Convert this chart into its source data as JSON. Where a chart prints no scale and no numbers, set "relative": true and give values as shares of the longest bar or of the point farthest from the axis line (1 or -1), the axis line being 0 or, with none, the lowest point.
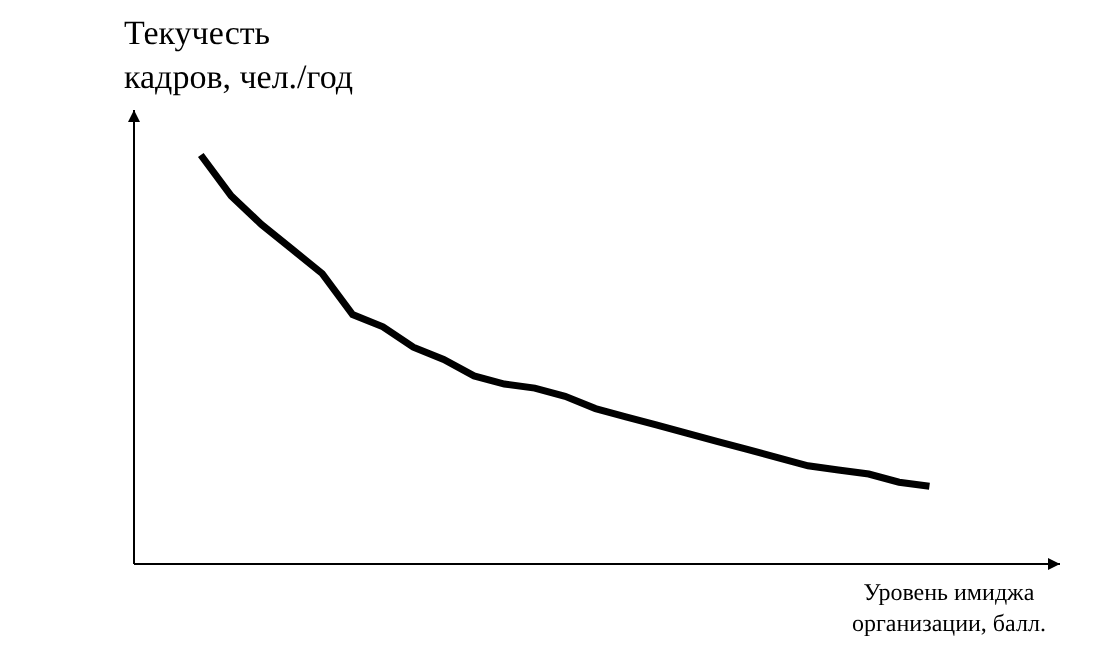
{
  "chart_data": {
    "type": "line",
    "relative": true,
    "ylabel": "Текучесть кадров, чел./год",
    "xlabel": "Уровень имиджа организации, балл.",
    "categories": [
      null,
      null,
      null,
      null,
      null,
      null,
      null,
      null,
      null,
      null,
      null,
      null,
      null,
      null,
      null,
      null,
      null,
      null,
      null,
      null,
      null,
      null,
      null,
      null,
      null
    ],
    "series": [
      {
        "color": "#000000",
        "values": [
          1.0,
          0.9,
          0.83,
          0.77,
          0.71,
          0.61,
          0.58,
          0.53,
          0.5,
          0.46,
          0.44,
          0.43,
          0.41,
          0.38,
          0.36,
          0.34,
          0.32,
          0.3,
          0.28,
          0.26,
          0.24,
          0.23,
          0.22,
          0.2,
          0.19
        ]
      }
    ]
  }
}
